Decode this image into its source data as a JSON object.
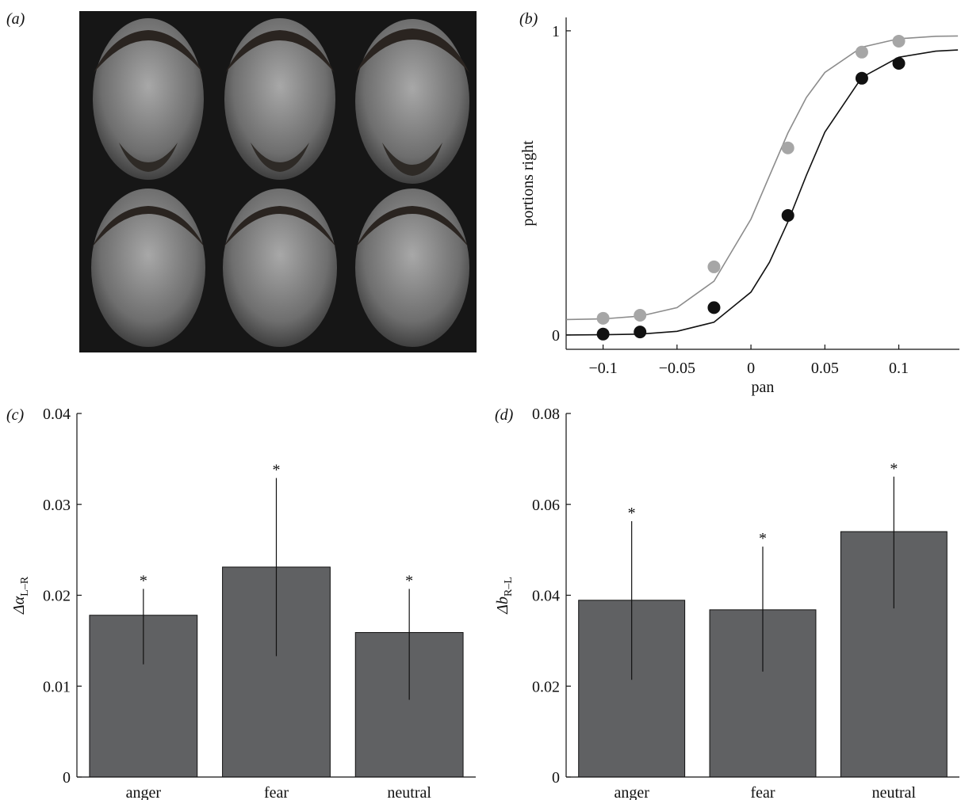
{
  "panel_a": {
    "label": "(a)"
  },
  "chart_data": [
    {
      "type": "scatter",
      "panel_label": "(b)",
      "x_label": "pan",
      "y_label": "portions right",
      "x": [
        -0.1,
        -0.075,
        -0.025,
        0.025,
        0.075,
        0.1
      ],
      "series": [
        {
          "color": "#a6a6a6",
          "values": [
            0.055,
            0.065,
            0.224,
            0.615,
            0.93,
            0.966
          ]
        },
        {
          "color": "#111111",
          "values": [
            0.003,
            0.01,
            0.09,
            0.393,
            0.844,
            0.893
          ]
        }
      ],
      "fits": [
        {
          "color": "#8c8c8c",
          "x": [
            -0.125,
            -0.1,
            -0.075,
            -0.05,
            -0.025,
            0,
            0.0125,
            0.025,
            0.0375,
            0.05,
            0.075,
            0.1,
            0.125,
            0.14
          ],
          "values": [
            0.051,
            0.053,
            0.062,
            0.09,
            0.177,
            0.381,
            0.523,
            0.664,
            0.781,
            0.863,
            0.946,
            0.974,
            0.982,
            0.983
          ]
        },
        {
          "color": "#111111",
          "x": [
            -0.125,
            -0.1,
            -0.075,
            -0.05,
            -0.025,
            0,
            0.0125,
            0.025,
            0.0375,
            0.05,
            0.075,
            0.1,
            0.125,
            0.14
          ],
          "values": [
            0,
            0.001,
            0.003,
            0.012,
            0.042,
            0.141,
            0.239,
            0.372,
            0.525,
            0.667,
            0.847,
            0.913,
            0.933,
            0.937
          ]
        }
      ],
      "xlim": [
        -0.125,
        0.141
      ],
      "ylim": [
        -0.047,
        1.044
      ],
      "xticks": [
        {
          "value": -0.1,
          "label": "−0.1"
        },
        {
          "value": -0.05,
          "label": "−0.05"
        },
        0,
        0.05,
        0.1
      ],
      "yticks": [
        0,
        1
      ]
    },
    {
      "type": "bar",
      "panel_label": "(c)",
      "y_label": "Δα",
      "y_label_sub": "L–R",
      "categories": [
        "anger",
        "fear",
        "neutral"
      ],
      "values": [
        0.0178,
        0.0231,
        0.0159
      ],
      "ci": [
        [
          0.0124,
          0.0207
        ],
        [
          0.0133,
          0.0329
        ],
        [
          0.0085,
          0.0207
        ]
      ],
      "annotations": [
        "*",
        "*",
        "*"
      ],
      "color": "#606163",
      "ylim": [
        0,
        0.04
      ],
      "yticks": [
        0,
        0.01,
        0.02,
        0.03,
        0.04
      ]
    },
    {
      "type": "bar",
      "panel_label": "(d)",
      "y_label": "Δb",
      "y_label_sub": "R–L",
      "categories": [
        "anger",
        "fear",
        "neutral"
      ],
      "values": [
        0.0389,
        0.0368,
        0.054
      ],
      "ci": [
        [
          0.0214,
          0.0563
        ],
        [
          0.0232,
          0.0507
        ],
        [
          0.0371,
          0.0661
        ]
      ],
      "annotations": [
        "*",
        "*",
        "*"
      ],
      "color": "#606163",
      "ylim": [
        0,
        0.08
      ],
      "yticks": [
        0,
        0.02,
        0.04,
        0.06,
        0.08
      ]
    }
  ]
}
